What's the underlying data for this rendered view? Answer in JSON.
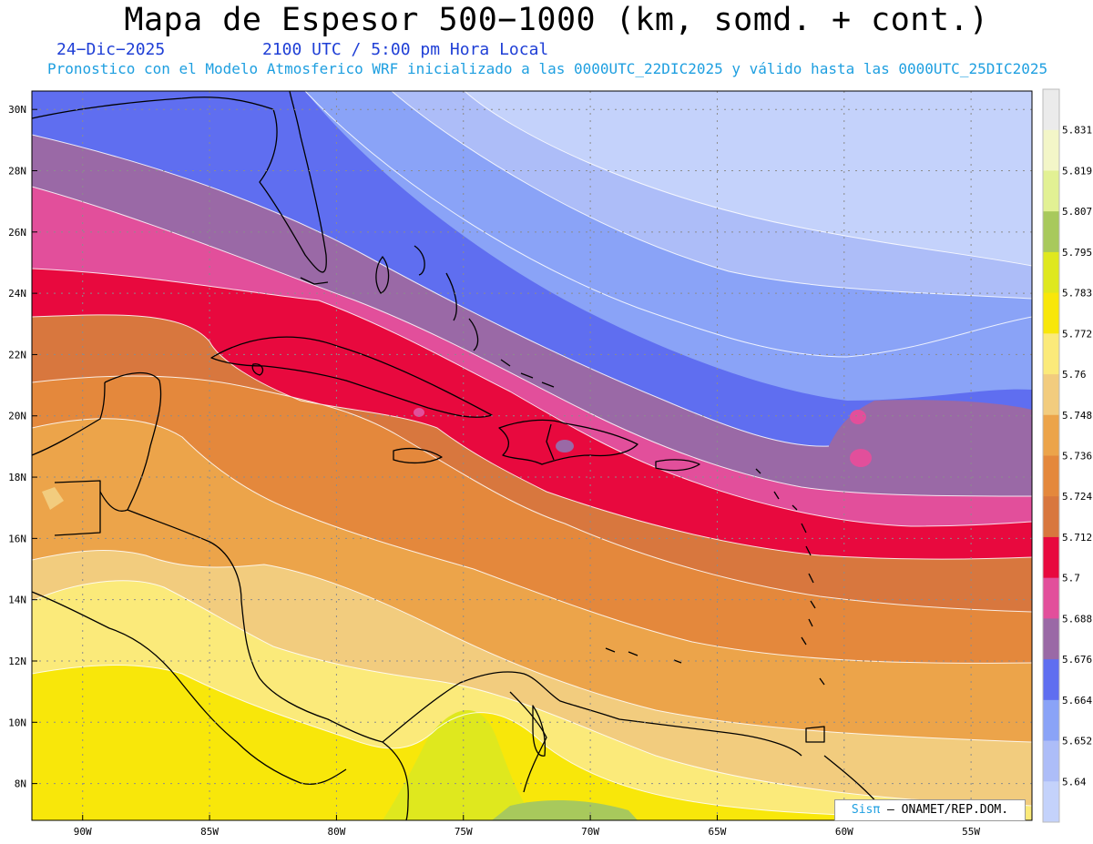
{
  "title": "Mapa de Espesor 500−1000 (km, somd. + cont.)",
  "date": "24−Dic−2025",
  "time": "2100 UTC / 5:00 pm Hora Local",
  "subtitle": "Pronostico con el Modelo Atmosferico WRF inicializado a las 0000UTC_22DIC2025 y válido hasta las  0000UTC_25DIC2025",
  "credit": {
    "brand": "Sisπ",
    "text": "– ONAMET/REP.DOM."
  },
  "map": {
    "lon_min": -92,
    "lon_max": -52.6,
    "lat_min": 6.8,
    "lat_max": 30.6,
    "lat_labels": [
      "30N",
      "28N",
      "26N",
      "24N",
      "22N",
      "20N",
      "18N",
      "16N",
      "14N",
      "12N",
      "10N",
      "8N"
    ],
    "lat_values": [
      30,
      28,
      26,
      24,
      22,
      20,
      18,
      16,
      14,
      12,
      10,
      8
    ],
    "lon_labels": [
      "90W",
      "85W",
      "80W",
      "75W",
      "70W",
      "65W",
      "60W",
      "55W"
    ],
    "lon_values": [
      -90,
      -85,
      -80,
      -75,
      -70,
      -65,
      -60,
      -55
    ]
  },
  "colorbar": {
    "labels": [
      "5.831",
      "5.819",
      "5.807",
      "5.795",
      "5.783",
      "5.772",
      "5.76",
      "5.748",
      "5.736",
      "5.724",
      "5.712",
      "5.7",
      "5.688",
      "5.676",
      "5.664",
      "5.652",
      "5.64"
    ],
    "colors": [
      "#ebebeb",
      "#f3f6c8",
      "#e2f194",
      "#a8c95c",
      "#dfe81e",
      "#f8e70a",
      "#fbea7a",
      "#f2cc7e",
      "#eca44a",
      "#e4883c",
      "#d8773e",
      "#e8093e",
      "#e24f9b",
      "#9a69a6",
      "#5f6ef0",
      "#8aa3f7",
      "#adbdf8",
      "#c4d2fb"
    ]
  }
}
